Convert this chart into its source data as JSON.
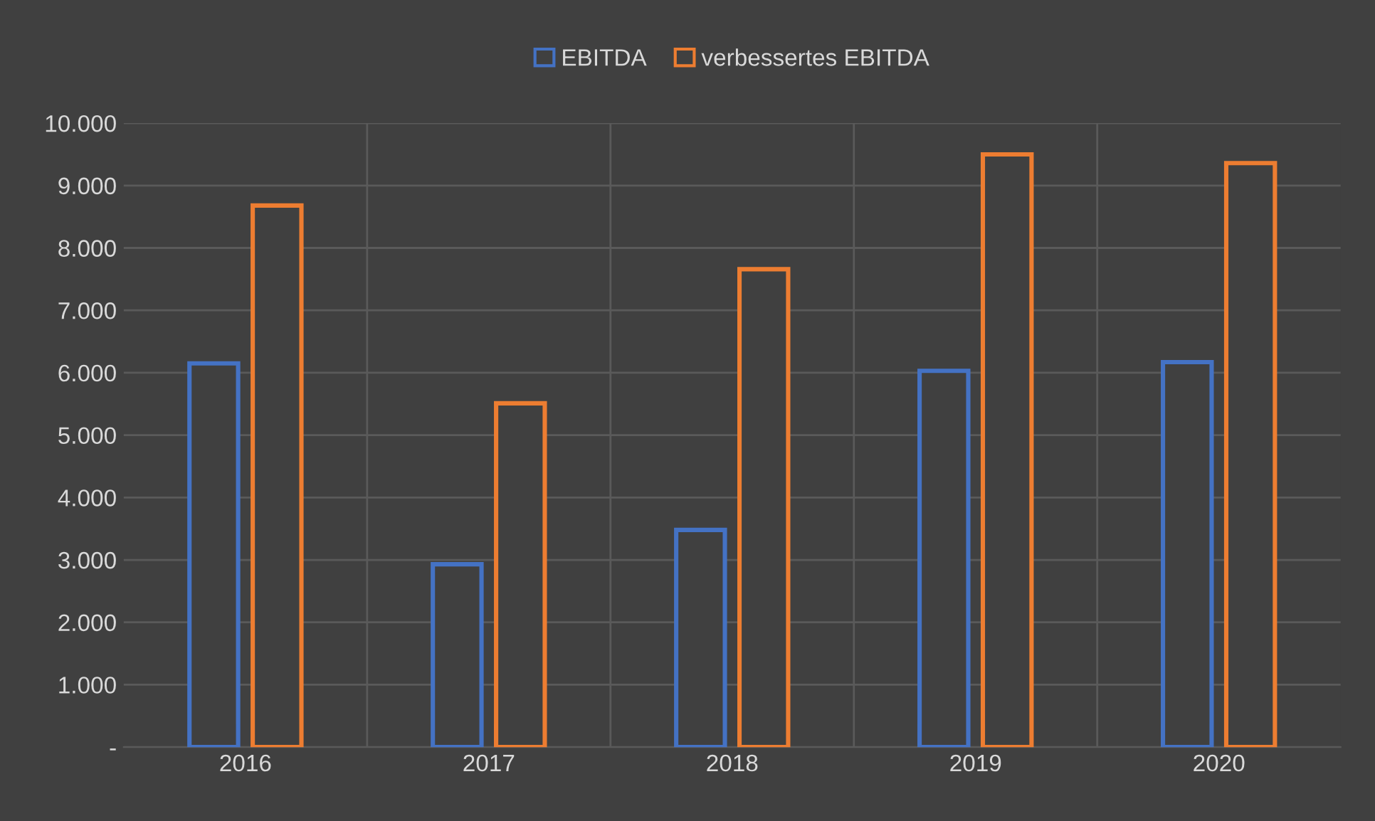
{
  "chart_data": {
    "type": "bar",
    "categories": [
      "2016",
      "2017",
      "2018",
      "2019",
      "2020"
    ],
    "series": [
      {
        "name": "EBITDA",
        "color": "#4472c4",
        "values": [
          6150,
          2930,
          3480,
          6030,
          6170
        ]
      },
      {
        "name": "verbessertes EBITDA",
        "color": "#ed7d31",
        "values": [
          8680,
          5510,
          7660,
          9500,
          9360
        ]
      }
    ],
    "ylim": [
      0,
      10000
    ],
    "yticks": [
      {
        "value": 0,
        "label": "-"
      },
      {
        "value": 1000,
        "label": "1.000"
      },
      {
        "value": 2000,
        "label": "2.000"
      },
      {
        "value": 3000,
        "label": "3.000"
      },
      {
        "value": 4000,
        "label": "4.000"
      },
      {
        "value": 5000,
        "label": "5.000"
      },
      {
        "value": 6000,
        "label": "6.000"
      },
      {
        "value": 7000,
        "label": "7.000"
      },
      {
        "value": 8000,
        "label": "8.000"
      },
      {
        "value": 9000,
        "label": "9.000"
      },
      {
        "value": 10000,
        "label": "10.000"
      }
    ],
    "grid": true,
    "legend": "top"
  }
}
